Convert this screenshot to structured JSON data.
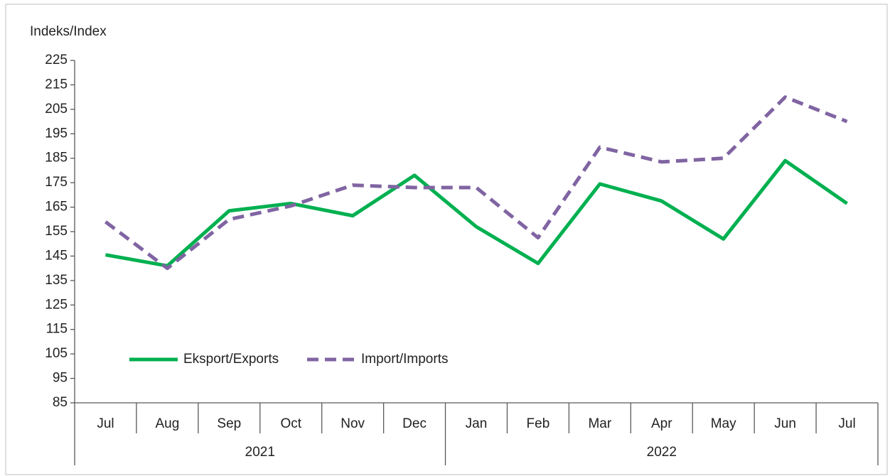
{
  "chart_data": {
    "type": "line",
    "y_label": "Indeks/Index",
    "categories": [
      "Jul",
      "Aug",
      "Sep",
      "Oct",
      "Nov",
      "Dec",
      "Jan",
      "Feb",
      "Mar",
      "Apr",
      "May",
      "Jun",
      "Jul"
    ],
    "category_groups": [
      {
        "label": "2021",
        "count": 6
      },
      {
        "label": "2022",
        "count": 7
      }
    ],
    "series": [
      {
        "name": "Eksport/Exports",
        "color": "#00b050",
        "style": "solid",
        "values": [
          145.5,
          141,
          163.5,
          166.5,
          161.5,
          178,
          157,
          142,
          174.5,
          167.5,
          152,
          184,
          166.5
        ]
      },
      {
        "name": "Import/Imports",
        "color": "#8064a2",
        "style": "dashed",
        "values": [
          159,
          140,
          160,
          165.5,
          174,
          173,
          173,
          152.5,
          189.5,
          183.5,
          185,
          210,
          200
        ]
      }
    ],
    "ylim": [
      85,
      225
    ],
    "yticks": [
      85,
      95,
      105,
      115,
      125,
      135,
      145,
      155,
      165,
      175,
      185,
      195,
      205,
      215,
      225
    ],
    "grid": false,
    "legend": "lower left"
  }
}
